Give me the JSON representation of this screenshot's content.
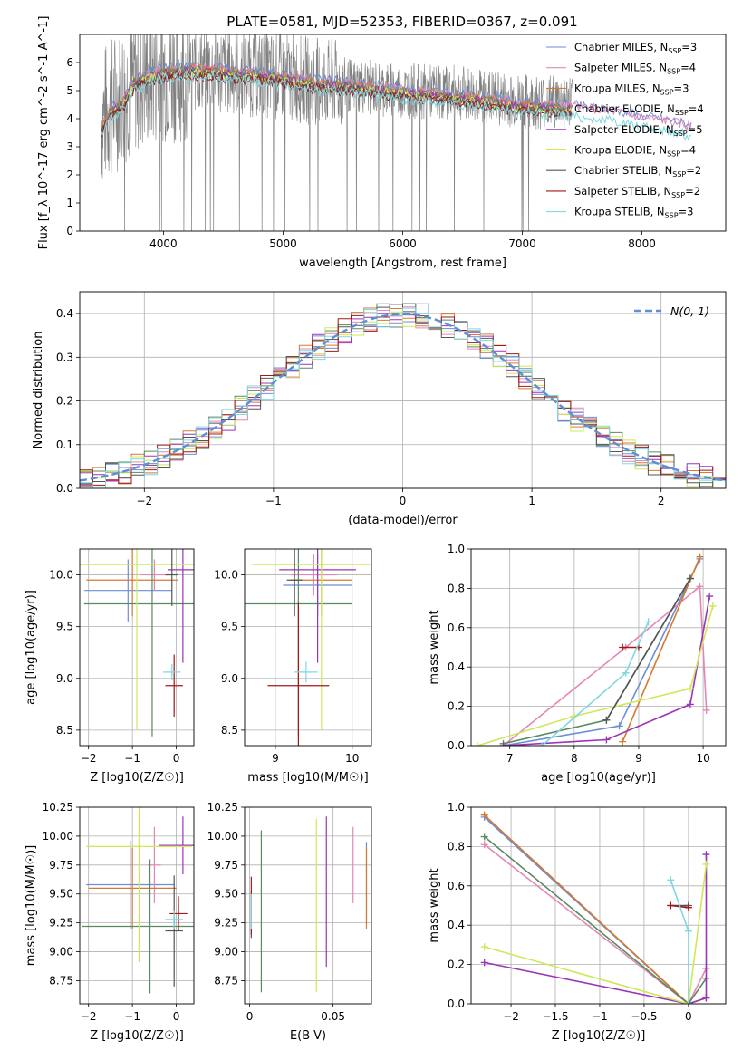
{
  "figure_title": "PLATE=0581, MJD=52353, FIBERID=0367, z=0.091",
  "colors": {
    "data": "#808080",
    "grid": "#b0b0b0",
    "gaussian": "#5b8fd6"
  },
  "series_styles": [
    {
      "label": "Chabrier MILES, N$_{SSP}$=3",
      "text": [
        "Chabrier MILES, N",
        "SSP",
        "=3"
      ],
      "color": "#6b8ed6"
    },
    {
      "label": "Salpeter MILES, N$_{SSP}$=4",
      "text": [
        "Salpeter MILES, N",
        "SSP",
        "=4"
      ],
      "color": "#e487b5"
    },
    {
      "label": "Kroupa MILES, N$_{SSP}$=3",
      "text": [
        "Kroupa MILES, N",
        "SSP",
        "=3"
      ],
      "color": "#d67a30"
    },
    {
      "label": "Chabrier ELODIE, N$_{SSP}$=4",
      "text": [
        "Chabrier ELODIE, N",
        "SSP",
        "=4"
      ],
      "color": "#5a8a62"
    },
    {
      "label": "Salpeter ELODIE, N$_{SSP}$=5",
      "text": [
        "Salpeter ELODIE, N",
        "SSP",
        "=5"
      ],
      "color": "#9b35b5"
    },
    {
      "label": "Kroupa ELODIE, N$_{SSP}$=4",
      "text": [
        "Kroupa ELODIE, N",
        "SSP",
        "=4"
      ],
      "color": "#cfe85a"
    },
    {
      "label": "Chabrier STELIB, N$_{SSP}$=2",
      "text": [
        "Chabrier STELIB, N",
        "SSP",
        "=2"
      ],
      "color": "#555555"
    },
    {
      "label": "Salpeter STELIB, N$_{SSP}$=2",
      "text": [
        "Salpeter STELIB, N",
        "SSP",
        "=2"
      ],
      "color": "#a01818"
    },
    {
      "label": "Kroupa STELIB, N$_{SSP}$=3",
      "text": [
        "Kroupa STELIB, N",
        "SSP",
        "=3"
      ],
      "color": "#7fd7e0"
    }
  ],
  "chart_data": [
    {
      "id": "spectrum",
      "type": "line",
      "title": "PLATE=0581, MJD=52353, FIBERID=0367, z=0.091",
      "xlabel": "wavelength [Angstrom, rest frame]",
      "ylabel": "Flux [f_λ 10^-17 erg cm^-2 s^-1 A^-1]",
      "xlim": [
        3300,
        8700
      ],
      "ylim": [
        0,
        7
      ],
      "xticks": [
        4000,
        5000,
        6000,
        7000,
        8000
      ],
      "yticks": [
        0,
        1,
        2,
        3,
        4,
        5,
        6
      ],
      "grid": false,
      "legend": "upper right",
      "data_envelope": {
        "x": [
          3480,
          3600,
          3750,
          4000,
          4300,
          4600,
          5000,
          5500,
          6000,
          6500,
          7000,
          7400,
          7700,
          8000,
          8400
        ],
        "y": [
          4.0,
          4.6,
          5.3,
          5.7,
          5.8,
          5.7,
          5.5,
          5.2,
          5.0,
          4.9,
          4.6,
          4.6,
          4.3,
          4.1,
          3.9
        ]
      },
      "models_approx": {
        "x": [
          3480,
          3550,
          3650,
          3750,
          3900,
          4000,
          4200,
          4500,
          4800,
          5000,
          5300,
          5600,
          6000,
          6500,
          7000,
          7400,
          7600,
          7800,
          8000,
          8200,
          8400
        ],
        "y": [
          3.8,
          4.4,
          4.6,
          5.4,
          5.7,
          5.8,
          5.9,
          5.8,
          5.7,
          5.6,
          5.4,
          5.3,
          5.1,
          4.9,
          4.6,
          4.5,
          4.4,
          4.3,
          4.1,
          4.0,
          3.8
        ]
      }
    },
    {
      "id": "residuals",
      "type": "histogram",
      "xlabel": "(data-model)/error",
      "ylabel": "Normed distribution",
      "xlim": [
        -2.5,
        2.5
      ],
      "ylim": [
        0,
        0.45
      ],
      "xticks": [
        -2,
        -1,
        0,
        1,
        2
      ],
      "yticks": [
        0.0,
        0.1,
        0.2,
        0.3,
        0.4
      ],
      "grid": true,
      "legend": "upper right",
      "gaussian_label": "N(0, 1)",
      "gaussian": {
        "mu": 0,
        "sigma": 1
      }
    },
    {
      "id": "age-vs-Z",
      "type": "errorbar",
      "xlabel": "Z [log10(Z/Z☉)]",
      "ylabel": "age [log10(age/yr)]",
      "xlim": [
        -2.2,
        0.4
      ],
      "ylim": [
        8.35,
        10.25
      ],
      "xticks": [
        -2,
        -1,
        0
      ],
      "yticks": [
        8.5,
        9.0,
        9.5,
        10.0
      ],
      "grid": true,
      "points": [
        {
          "s": 0,
          "x": -1.1,
          "xerr": 1.0,
          "y": 9.85,
          "yerr": 0.3
        },
        {
          "s": 1,
          "x": -0.5,
          "xerr": 0.3,
          "y": 10.0,
          "yerr": 0.15
        },
        {
          "s": 2,
          "x": -1.0,
          "xerr": 1.05,
          "y": 9.95,
          "yerr": 0.35
        },
        {
          "s": 3,
          "x": -0.55,
          "xerr": 1.55,
          "y": 9.72,
          "yerr": 1.28
        },
        {
          "s": 4,
          "x": 0.15,
          "xerr": 0.35,
          "y": 10.05,
          "yerr": 0.9
        },
        {
          "s": 5,
          "x": -0.9,
          "xerr": 1.3,
          "y": 10.1,
          "yerr": 1.6
        },
        {
          "s": 6,
          "x": -0.1,
          "xerr": 0.15,
          "y": 10.0,
          "yerr": 0.3
        },
        {
          "s": 7,
          "x": -0.05,
          "xerr": 0.2,
          "y": 8.93,
          "yerr": 0.3
        },
        {
          "s": 8,
          "x": -0.1,
          "xerr": 0.2,
          "y": 9.06,
          "yerr": 0.08
        }
      ]
    },
    {
      "id": "age-vs-mass",
      "type": "errorbar",
      "xlabel": "mass [log10(M/M☉)]",
      "ylabel": "",
      "xlim": [
        8.6,
        10.25
      ],
      "ylim": [
        8.35,
        10.25
      ],
      "xticks": [
        9,
        10
      ],
      "yticks": [
        8.5,
        9.0,
        9.5,
        10.0
      ],
      "grid": true,
      "points": [
        {
          "s": 0,
          "x": 9.55,
          "xerr": 0.45,
          "y": 9.9,
          "yerr": 0.3
        },
        {
          "s": 1,
          "x": 9.5,
          "xerr": 0.3,
          "y": 10.0,
          "yerr": 0.2
        },
        {
          "s": 2,
          "x": 9.6,
          "xerr": 0.4,
          "y": 9.95,
          "yerr": 0.35
        },
        {
          "s": 3,
          "x": 9.3,
          "xerr": 0.7,
          "y": 9.72,
          "yerr": 1.28
        },
        {
          "s": 4,
          "x": 9.55,
          "xerr": 0.5,
          "y": 10.05,
          "yerr": 0.9
        },
        {
          "s": 5,
          "x": 9.6,
          "xerr": 0.9,
          "y": 10.1,
          "yerr": 1.6
        },
        {
          "s": 6,
          "x": 9.25,
          "xerr": 0.1,
          "y": 9.95,
          "yerr": 0.35
        },
        {
          "s": 7,
          "x": 9.3,
          "xerr": 0.4,
          "y": 8.93,
          "yerr": 0.8
        },
        {
          "s": 8,
          "x": 9.4,
          "xerr": 0.15,
          "y": 9.06,
          "yerr": 0.1
        }
      ]
    },
    {
      "id": "weight-vs-age",
      "type": "line",
      "xlabel": "age [log10(age/yr)]",
      "ylabel": "mass weight",
      "xlim": [
        6.4,
        10.35
      ],
      "ylim": [
        0,
        1
      ],
      "xticks": [
        7,
        8,
        9,
        10
      ],
      "yticks": [
        0.0,
        0.2,
        0.4,
        0.6,
        0.8,
        1.0
      ],
      "grid": true,
      "series": [
        {
          "s": 0,
          "x": [
            6.9,
            8.7,
            9.95
          ],
          "y": [
            0.0,
            0.1,
            0.95
          ]
        },
        {
          "s": 1,
          "x": [
            6.9,
            8.8,
            9.95,
            10.05
          ],
          "y": [
            0.0,
            0.5,
            0.81,
            0.18
          ]
        },
        {
          "s": 2,
          "x": [
            8.75,
            9.95
          ],
          "y": [
            0.02,
            0.96
          ]
        },
        {
          "s": 3,
          "x": [
            6.9,
            8.5,
            9.8
          ],
          "y": [
            0.01,
            0.13,
            0.85
          ]
        },
        {
          "s": 4,
          "x": [
            6.9,
            8.5,
            9.8,
            10.1
          ],
          "y": [
            0.0,
            0.03,
            0.21,
            0.76
          ]
        },
        {
          "s": 5,
          "x": [
            6.5,
            8.0,
            9.8,
            10.15
          ],
          "y": [
            0.0,
            0.15,
            0.29,
            0.71
          ]
        },
        {
          "s": 6,
          "x": [
            8.5,
            9.8
          ],
          "y": [
            0.13,
            0.85
          ]
        },
        {
          "s": 7,
          "x": [
            8.75,
            9.0
          ],
          "y": [
            0.5,
            0.5
          ]
        },
        {
          "s": 8,
          "x": [
            7.5,
            8.8,
            9.15
          ],
          "y": [
            0.0,
            0.37,
            0.63
          ]
        }
      ]
    },
    {
      "id": "mass-vs-Z",
      "type": "errorbar",
      "xlabel": "Z [log10(Z/Z☉)]",
      "ylabel": "mass [log10(M/M☉)]",
      "xlim": [
        -2.2,
        0.4
      ],
      "ylim": [
        8.55,
        10.25
      ],
      "xticks": [
        -2,
        -1,
        0
      ],
      "yticks": [
        8.75,
        9.0,
        9.25,
        9.5,
        9.75,
        10.0,
        10.25
      ],
      "grid": true,
      "points": [
        {
          "s": 0,
          "x": -1.05,
          "xerr": 1.0,
          "y": 9.58,
          "yerr": 0.38
        },
        {
          "s": 1,
          "x": -0.5,
          "xerr": 0.15,
          "y": 9.75,
          "yerr": 0.33
        },
        {
          "s": 2,
          "x": -1.0,
          "xerr": 1.0,
          "y": 9.55,
          "yerr": 0.35
        },
        {
          "s": 3,
          "x": -0.6,
          "xerr": 1.55,
          "y": 9.22,
          "yerr": 0.58
        },
        {
          "s": 4,
          "x": 0.15,
          "xerr": 0.55,
          "y": 9.92,
          "yerr": 0.25
        },
        {
          "s": 5,
          "x": -0.85,
          "xerr": 1.2,
          "y": 9.91,
          "yerr": 1.0
        },
        {
          "s": 6,
          "x": -0.05,
          "xerr": 0.2,
          "y": 9.18,
          "yerr": 0.48
        },
        {
          "s": 7,
          "x": 0.05,
          "xerr": 0.2,
          "y": 9.33,
          "yerr": 0.15
        },
        {
          "s": 8,
          "x": -0.05,
          "xerr": 0.2,
          "y": 9.28,
          "yerr": 0.08
        }
      ]
    },
    {
      "id": "mass-vs-ebv",
      "type": "errorbar",
      "xlabel": "E(B-V)",
      "ylabel": "",
      "xlim": [
        -0.003,
        0.073
      ],
      "ylim": [
        8.55,
        10.25
      ],
      "xticks": [
        0.0,
        0.05
      ],
      "yticks": [
        8.75,
        9.0,
        9.25,
        9.5,
        9.75,
        10.0,
        10.25
      ],
      "grid": true,
      "points": [
        {
          "s": 0,
          "x": 0.07,
          "y": 9.6,
          "yerr": 0.35
        },
        {
          "s": 1,
          "x": 0.062,
          "y": 9.75,
          "yerr": 0.33
        },
        {
          "s": 2,
          "x": 0.07,
          "y": 9.55,
          "yerr": 0.35
        },
        {
          "s": 3,
          "x": 0.007,
          "y": 9.35,
          "yerr": 0.7
        },
        {
          "s": 4,
          "x": 0.046,
          "y": 9.52,
          "yerr": 0.65
        },
        {
          "s": 5,
          "x": 0.04,
          "y": 9.4,
          "yerr": 0.75
        },
        {
          "s": 6,
          "x": 0.001,
          "y": 9.32,
          "yerr": 0.2
        },
        {
          "s": 7,
          "x": 0.001,
          "y": 9.4,
          "yerr": 0.25
        },
        {
          "s": 8,
          "x": 0.001,
          "y": 9.35,
          "yerr": 0.15
        }
      ]
    },
    {
      "id": "weight-vs-Z",
      "type": "line",
      "xlabel": "Z [log10(Z/Z☉)]",
      "ylabel": "mass weight",
      "xlim": [
        -2.45,
        0.42
      ],
      "ylim": [
        0,
        1
      ],
      "xticks": [
        -2.0,
        -1.5,
        -1.0,
        -0.5,
        0.0
      ],
      "yticks": [
        0.0,
        0.2,
        0.4,
        0.6,
        0.8,
        1.0
      ],
      "grid": true,
      "series": [
        {
          "s": 0,
          "x": [
            -2.3,
            0.0,
            0.2
          ],
          "y": [
            0.95,
            0.0,
            0.03
          ]
        },
        {
          "s": 1,
          "x": [
            -2.3,
            0.0,
            0.2
          ],
          "y": [
            0.81,
            0.0,
            0.18
          ]
        },
        {
          "s": 2,
          "x": [
            -2.3,
            0.0,
            0.2
          ],
          "y": [
            0.96,
            0.0,
            0.03
          ]
        },
        {
          "s": 3,
          "x": [
            -2.3,
            0.0,
            0.2
          ],
          "y": [
            0.85,
            0.0,
            0.13
          ]
        },
        {
          "s": 4,
          "x": [
            -2.3,
            0.0,
            0.2,
            0.2
          ],
          "y": [
            0.21,
            0.0,
            0.03,
            0.76
          ]
        },
        {
          "s": 5,
          "x": [
            -2.3,
            0.0,
            0.2
          ],
          "y": [
            0.29,
            0.0,
            0.71
          ]
        },
        {
          "s": 6,
          "x": [
            -0.2,
            0.0
          ],
          "y": [
            0.5,
            0.5
          ]
        },
        {
          "s": 7,
          "x": [
            -0.2,
            0.0
          ],
          "y": [
            0.5,
            0.49
          ]
        },
        {
          "s": 8,
          "x": [
            -0.2,
            0.0,
            0.0
          ],
          "y": [
            0.63,
            0.37,
            0.0
          ]
        }
      ]
    }
  ]
}
